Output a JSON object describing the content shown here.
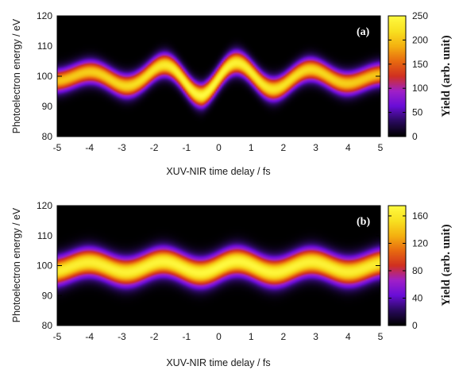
{
  "chart_data": [
    {
      "type": "heatmap",
      "panel_label": "(a)",
      "xlabel": "XUV-NIR time delay / fs",
      "ylabel": "Photoelectron energy / eV",
      "xlim": [
        -5,
        5
      ],
      "ylim": [
        80,
        120
      ],
      "x_ticks": [
        "-5",
        "-4",
        "-3",
        "-2",
        "-1",
        "0",
        "1",
        "2",
        "3",
        "4",
        "5"
      ],
      "y_ticks": [
        "80",
        "90",
        "100",
        "110",
        "120"
      ],
      "colorbar": {
        "label": "Yield (arb. unit)",
        "range": [
          0,
          250
        ],
        "ticks": [
          "0",
          "50",
          "100",
          "150",
          "200",
          "250"
        ],
        "palette": [
          "#000000",
          "#2a0a5e",
          "#6a0dd8",
          "#a020c8",
          "#d03020",
          "#e86a10",
          "#f4b010",
          "#f8e020",
          "#fffa40"
        ]
      },
      "ridge": {
        "center_energy_eV": 99.5,
        "oscillation_period_fs": 2.3,
        "amplitude_envelope_eV": [
          {
            "delay_fs": -5,
            "amplitude": 1.2
          },
          {
            "delay_fs": -2.5,
            "amplitude": 3.0
          },
          {
            "delay_fs": -0.5,
            "amplitude": 6.0
          },
          {
            "delay_fs": 0.5,
            "amplitude": 5.0
          },
          {
            "delay_fs": 2.5,
            "amplitude": 3.0
          },
          {
            "delay_fs": 5,
            "amplitude": 1.2
          }
        ],
        "width_eV": 3.6,
        "peak_yield": 250
      }
    },
    {
      "type": "heatmap",
      "panel_label": "(b)",
      "xlabel": "XUV-NIR time delay / fs",
      "ylabel": "Photoelectron energy / eV",
      "xlim": [
        -5,
        5
      ],
      "ylim": [
        80,
        120
      ],
      "x_ticks": [
        "-5",
        "-4",
        "-3",
        "-2",
        "-1",
        "0",
        "1",
        "2",
        "3",
        "4",
        "5"
      ],
      "y_ticks": [
        "80",
        "90",
        "100",
        "110",
        "120"
      ],
      "colorbar": {
        "label": "Yield (arb. unit)",
        "range": [
          0,
          175
        ],
        "ticks": [
          "0",
          "40",
          "80",
          "120",
          "160"
        ],
        "palette": [
          "#000000",
          "#2a0a5e",
          "#6a0dd8",
          "#a020c8",
          "#d03020",
          "#e86a10",
          "#f4b010",
          "#f8e020",
          "#fffa40"
        ]
      },
      "ridge": {
        "center_energy_eV": 99.5,
        "oscillation_period_fs": 2.3,
        "amplitude_envelope_eV": [
          {
            "delay_fs": -5,
            "amplitude": 1.5
          },
          {
            "delay_fs": 0,
            "amplitude": 2.0
          },
          {
            "delay_fs": 5,
            "amplitude": 1.5
          }
        ],
        "width_eV": 4.4,
        "peak_yield": 175
      }
    }
  ]
}
